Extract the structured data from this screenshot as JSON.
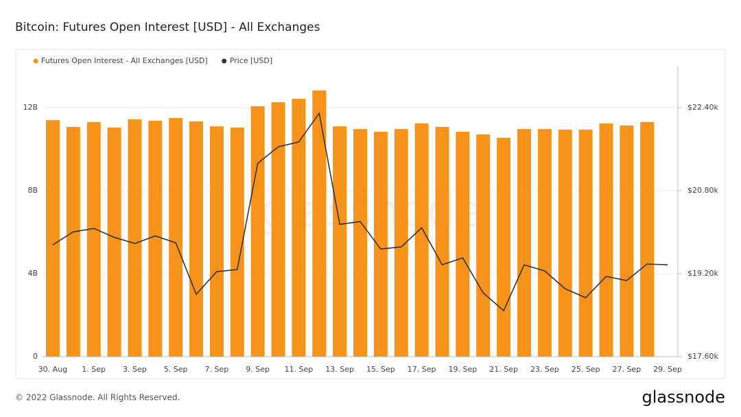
{
  "chart_data": {
    "type": "bar-line",
    "title": "Bitcoin: Futures Open Interest [USD] - All Exchanges",
    "watermark": "glassnode",
    "footer": "© 2022 Glassnode. All Rights Reserved.",
    "logo": "glassnode",
    "categories": [
      "30. Aug",
      null,
      "1. Sep",
      null,
      "3. Sep",
      null,
      "5. Sep",
      null,
      "7. Sep",
      null,
      "9. Sep",
      null,
      "11. Sep",
      null,
      "13. Sep",
      null,
      "15. Sep",
      null,
      "17. Sep",
      null,
      "19. Sep",
      null,
      "21. Sep",
      null,
      "23. Sep",
      null,
      "25. Sep",
      null,
      "27. Sep",
      null,
      "29. Sep"
    ],
    "ylim": [
      0,
      14000000000
    ],
    "yticks": [
      0,
      {
        "value": 4000000000,
        "label": "4B"
      },
      {
        "value": 8000000000,
        "label": "8B"
      },
      {
        "value": 12000000000,
        "label": "12B"
      }
    ],
    "y2lim": [
      17600,
      23200
    ],
    "y2ticks": [
      {
        "value": 17600,
        "label": "$17.60k"
      },
      {
        "value": 19200,
        "label": "$19.20k"
      },
      {
        "value": 20800,
        "label": "$20.80k"
      },
      {
        "value": 22400,
        "label": "$22.40k"
      }
    ],
    "grid": true,
    "legend": "top-left",
    "series": [
      {
        "name": "Futures Open Interest - All Exchanges [USD]",
        "color": "#f7931a",
        "type": "bar",
        "values": [
          11400000000,
          11070000000,
          11310000000,
          11040000000,
          11440000000,
          11370000000,
          11500000000,
          11340000000,
          11100000000,
          11040000000,
          12070000000,
          12260000000,
          12430000000,
          12830000000,
          11100000000,
          10970000000,
          10840000000,
          10970000000,
          11240000000,
          11070000000,
          10840000000,
          10710000000,
          10550000000,
          10970000000,
          10970000000,
          10940000000,
          10940000000,
          11240000000,
          11140000000,
          11310000000,
          null
        ]
      },
      {
        "name": "Price [USD]",
        "color": "#333333",
        "type": "line",
        "axis": "y2",
        "values": [
          19755,
          20006,
          20072,
          19900,
          19781,
          19927,
          19795,
          18803,
          19239,
          19279,
          21328,
          21645,
          21738,
          22293,
          20151,
          20204,
          19675,
          19715,
          20085,
          19371,
          19504,
          18830,
          18486,
          19371,
          19253,
          18909,
          18737,
          19147,
          19067,
          19385,
          19371
        ]
      }
    ]
  }
}
